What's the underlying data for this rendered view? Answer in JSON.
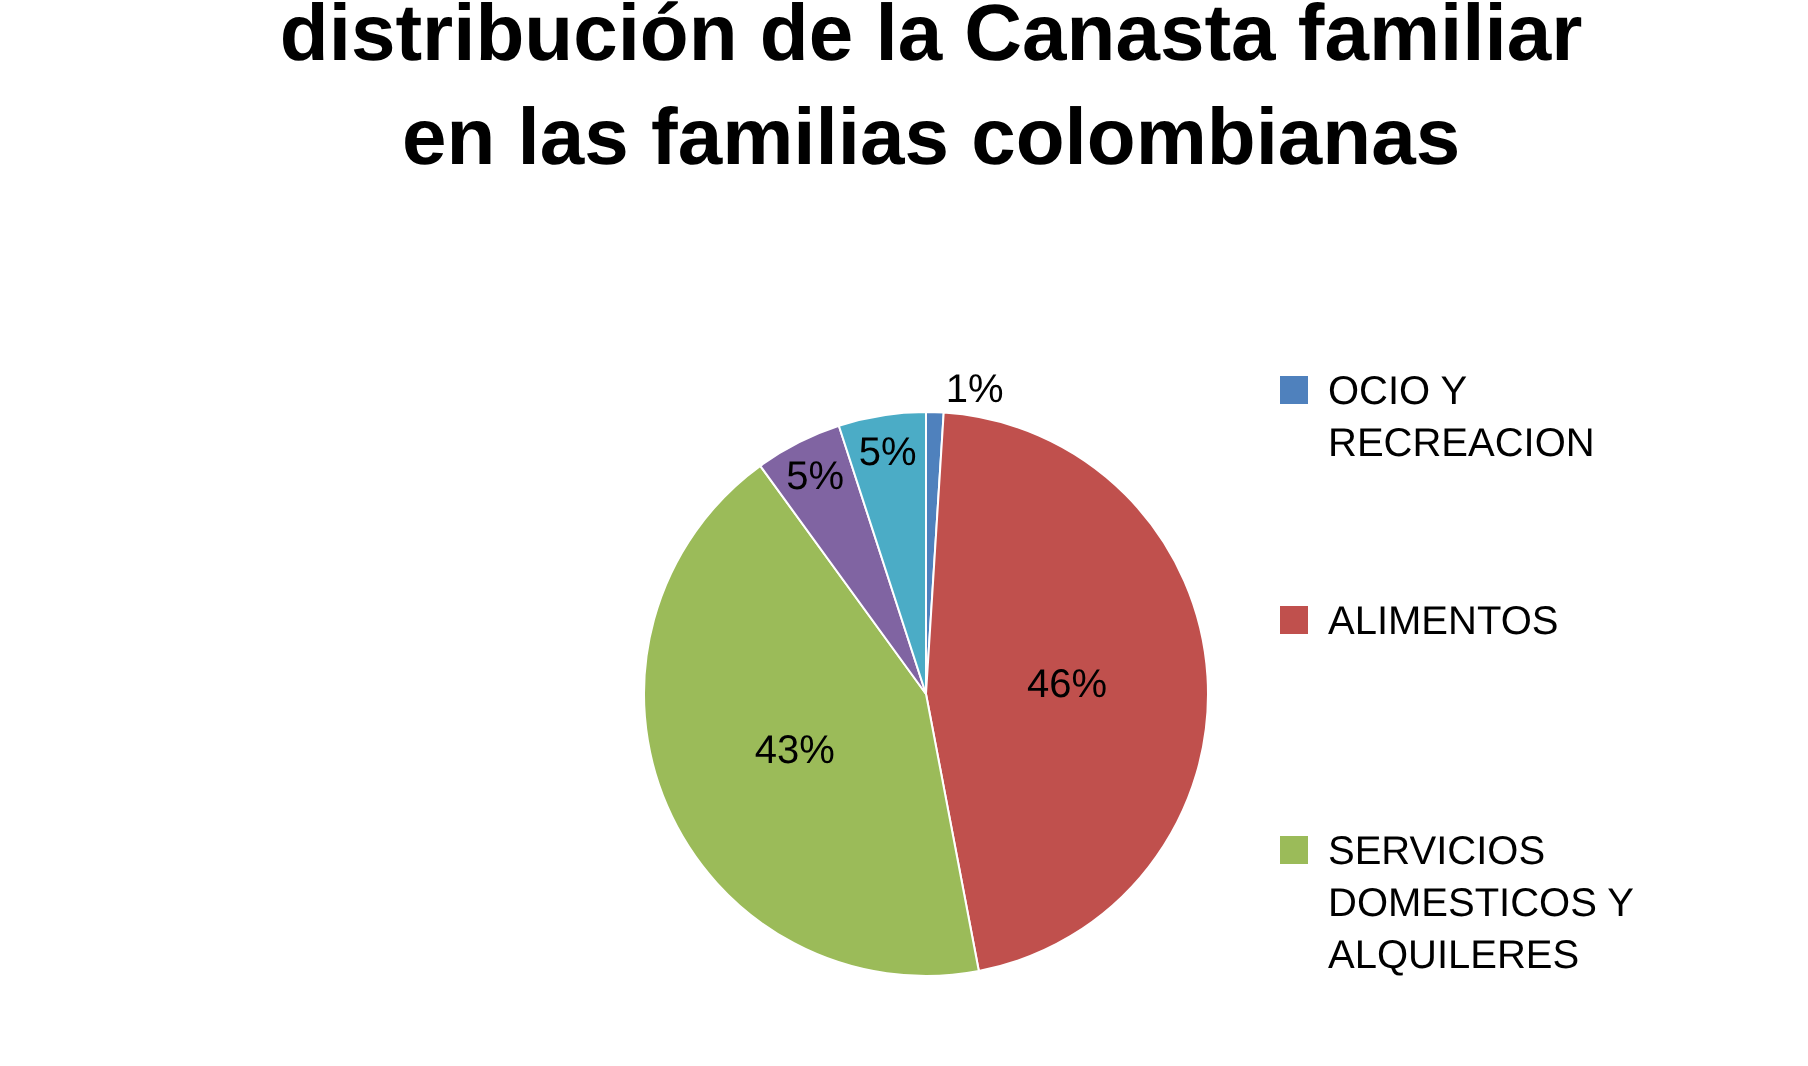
{
  "chart_data": {
    "type": "pie",
    "title": "distribución de la Canasta familiar en las familias colombianas",
    "categories": [
      "OCIO Y RECREACION",
      "ALIMENTOS",
      "SERVICIOS DOMESTICOS Y ALQUILERES",
      null,
      null
    ],
    "values": [
      1,
      46,
      43,
      5,
      5
    ],
    "value_labels": [
      "1%",
      "46%",
      "43%",
      "5%",
      "5%"
    ],
    "colors": [
      "#4f81bd",
      "#c0504d",
      "#9bbb59",
      "#8064a2",
      "#4bacc6"
    ],
    "legend": "right"
  }
}
